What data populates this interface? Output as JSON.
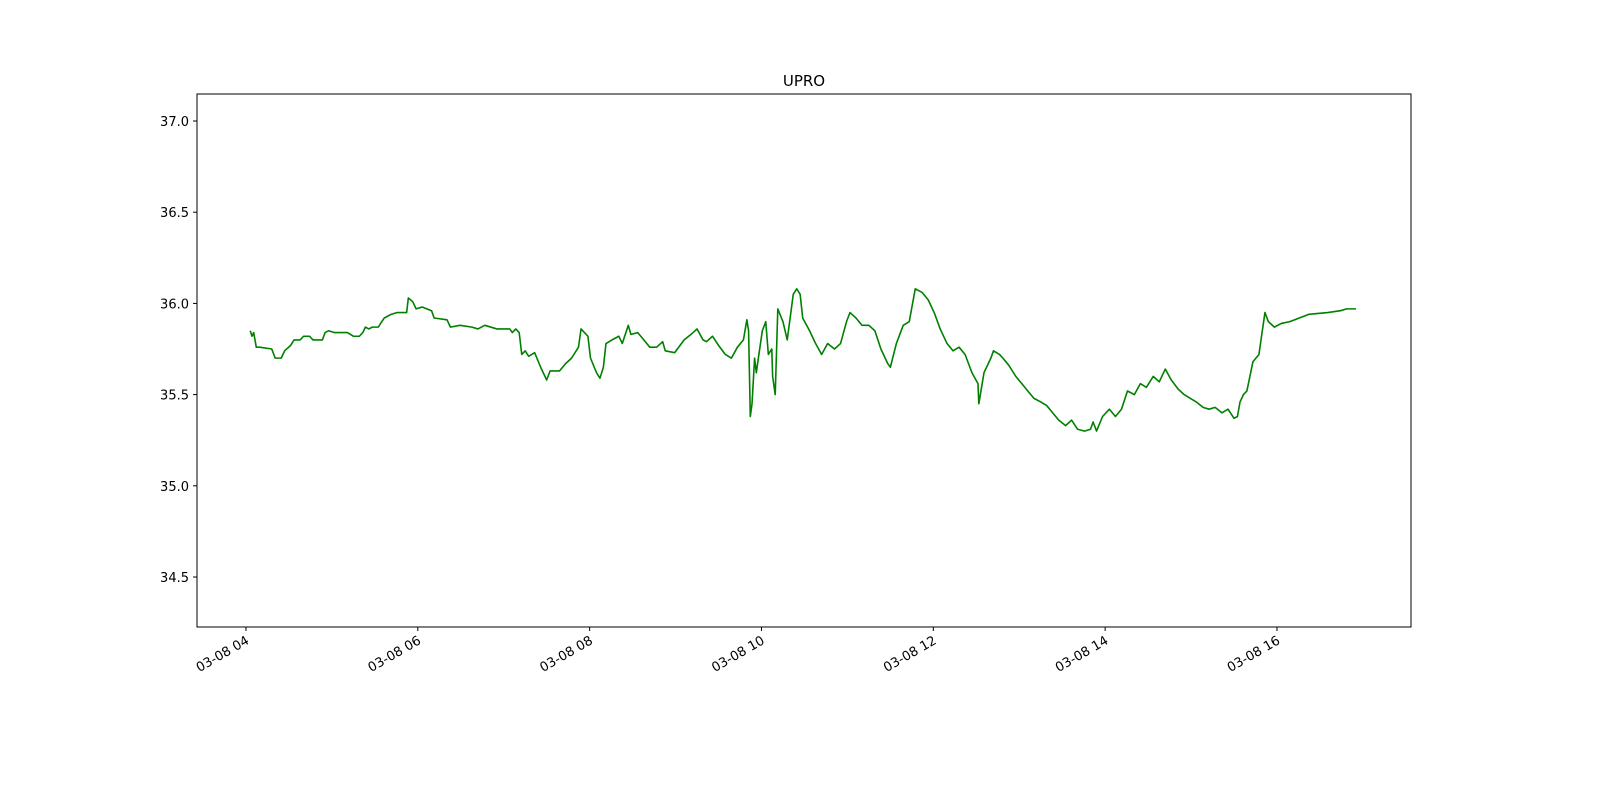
{
  "chart_data": {
    "type": "line",
    "title": "UPRO",
    "x": [
      4.05,
      4.07,
      4.09,
      4.12,
      4.16,
      4.3,
      4.34,
      4.41,
      4.45,
      4.52,
      4.56,
      4.63,
      4.67,
      4.74,
      4.78,
      4.89,
      4.92,
      4.96,
      5.03,
      5.18,
      5.25,
      5.32,
      5.36,
      5.39,
      5.43,
      5.47,
      5.54,
      5.58,
      5.61,
      5.69,
      5.76,
      5.87,
      5.89,
      5.94,
      5.98,
      6.05,
      6.16,
      6.19,
      6.34,
      6.38,
      6.49,
      6.63,
      6.7,
      6.78,
      6.92,
      7.07,
      7.1,
      7.14,
      7.18,
      7.21,
      7.25,
      7.29,
      7.36,
      7.43,
      7.5,
      7.54,
      7.65,
      7.72,
      7.79,
      7.87,
      7.9,
      7.98,
      8.01,
      8.08,
      8.12,
      8.16,
      8.19,
      8.26,
      8.34,
      8.38,
      8.45,
      8.48,
      8.56,
      8.63,
      8.7,
      8.78,
      8.85,
      8.88,
      8.99,
      9.1,
      9.18,
      9.25,
      9.32,
      9.36,
      9.43,
      9.5,
      9.58,
      9.65,
      9.72,
      9.79,
      9.83,
      9.85,
      9.87,
      9.89,
      9.92,
      9.94,
      9.97,
      10.01,
      10.05,
      10.08,
      10.12,
      10.13,
      10.16,
      10.19,
      10.25,
      10.3,
      10.37,
      10.41,
      10.45,
      10.48,
      10.56,
      10.63,
      10.7,
      10.77,
      10.85,
      10.92,
      10.99,
      11.03,
      11.1,
      11.17,
      11.25,
      11.32,
      11.39,
      11.47,
      11.5,
      11.57,
      11.65,
      11.72,
      11.79,
      11.87,
      11.94,
      12.01,
      12.08,
      12.16,
      12.23,
      12.3,
      12.37,
      12.45,
      12.52,
      12.53,
      12.59,
      12.67,
      12.7,
      12.77,
      12.81,
      12.88,
      12.96,
      13.03,
      13.1,
      13.17,
      13.25,
      13.32,
      13.39,
      13.46,
      13.54,
      13.61,
      13.68,
      13.76,
      13.83,
      13.86,
      13.9,
      13.97,
      14.05,
      14.12,
      14.19,
      14.26,
      14.34,
      14.41,
      14.48,
      14.56,
      14.63,
      14.7,
      14.77,
      14.85,
      14.92,
      14.99,
      15.06,
      15.14,
      15.21,
      15.28,
      15.36,
      15.43,
      15.5,
      15.54,
      15.57,
      15.61,
      15.65,
      15.72,
      15.79,
      15.86,
      15.9,
      15.97,
      16.05,
      16.15,
      16.26,
      16.37,
      16.59,
      16.74,
      16.81,
      16.92
    ],
    "series": [
      {
        "color": "#008000",
        "values": [
          35.85,
          35.82,
          35.84,
          35.76,
          35.76,
          35.75,
          35.7,
          35.7,
          35.74,
          35.77,
          35.8,
          35.8,
          35.82,
          35.82,
          35.8,
          35.8,
          35.84,
          35.85,
          35.84,
          35.84,
          35.82,
          35.82,
          35.84,
          35.87,
          35.86,
          35.87,
          35.87,
          35.9,
          35.92,
          35.94,
          35.95,
          35.95,
          36.03,
          36.01,
          35.97,
          35.98,
          35.96,
          35.92,
          35.91,
          35.87,
          35.88,
          35.87,
          35.86,
          35.88,
          35.86,
          35.86,
          35.84,
          35.86,
          35.84,
          35.72,
          35.74,
          35.71,
          35.73,
          35.65,
          35.58,
          35.63,
          35.63,
          35.67,
          35.7,
          35.76,
          35.86,
          35.82,
          35.7,
          35.62,
          35.59,
          35.65,
          35.78,
          35.8,
          35.82,
          35.78,
          35.88,
          35.83,
          35.84,
          35.8,
          35.76,
          35.76,
          35.79,
          35.74,
          35.73,
          35.8,
          35.83,
          35.86,
          35.8,
          35.79,
          35.82,
          35.77,
          35.72,
          35.7,
          35.76,
          35.8,
          35.91,
          35.85,
          35.38,
          35.45,
          35.7,
          35.62,
          35.72,
          35.85,
          35.9,
          35.72,
          35.75,
          35.6,
          35.5,
          35.97,
          35.9,
          35.8,
          36.05,
          36.08,
          36.05,
          35.92,
          35.85,
          35.78,
          35.72,
          35.78,
          35.75,
          35.78,
          35.9,
          35.95,
          35.92,
          35.88,
          35.88,
          35.85,
          35.75,
          35.67,
          35.65,
          35.78,
          35.88,
          35.9,
          36.08,
          36.06,
          36.02,
          35.95,
          35.86,
          35.78,
          35.74,
          35.76,
          35.72,
          35.62,
          35.56,
          35.45,
          35.62,
          35.7,
          35.74,
          35.72,
          35.7,
          35.66,
          35.6,
          35.56,
          35.52,
          35.48,
          35.46,
          35.44,
          35.4,
          35.36,
          35.33,
          35.36,
          35.31,
          35.3,
          35.31,
          35.35,
          35.3,
          35.38,
          35.42,
          35.38,
          35.42,
          35.52,
          35.5,
          35.56,
          35.54,
          35.6,
          35.57,
          35.64,
          35.58,
          35.53,
          35.5,
          35.48,
          35.46,
          35.43,
          35.42,
          35.43,
          35.4,
          35.42,
          35.37,
          35.38,
          35.46,
          35.5,
          35.52,
          35.68,
          35.72,
          35.95,
          35.9,
          35.87,
          35.89,
          35.9,
          35.92,
          35.94,
          35.95,
          35.96,
          35.97,
          35.97
        ]
      }
    ],
    "xlim": [
      3.43,
      17.56
    ],
    "xticks": [
      {
        "value": 4,
        "label": "03-08 04"
      },
      {
        "value": 6,
        "label": "03-08 06"
      },
      {
        "value": 8,
        "label": "03-08 08"
      },
      {
        "value": 10,
        "label": "03-08 10"
      },
      {
        "value": 12,
        "label": "03-08 12"
      },
      {
        "value": 14,
        "label": "03-08 14"
      },
      {
        "value": 16,
        "label": "03-08 16"
      }
    ],
    "ylim": [
      34.226,
      37.148
    ],
    "yticks": [
      {
        "value": 34.5,
        "label": "34.5"
      },
      {
        "value": 35,
        "label": "35.0"
      },
      {
        "value": 35.5,
        "label": "35.5"
      },
      {
        "value": 36,
        "label": "36.0"
      },
      {
        "value": 36.5,
        "label": "36.5"
      },
      {
        "value": 37,
        "label": "37.0"
      }
    ],
    "grid": false
  }
}
